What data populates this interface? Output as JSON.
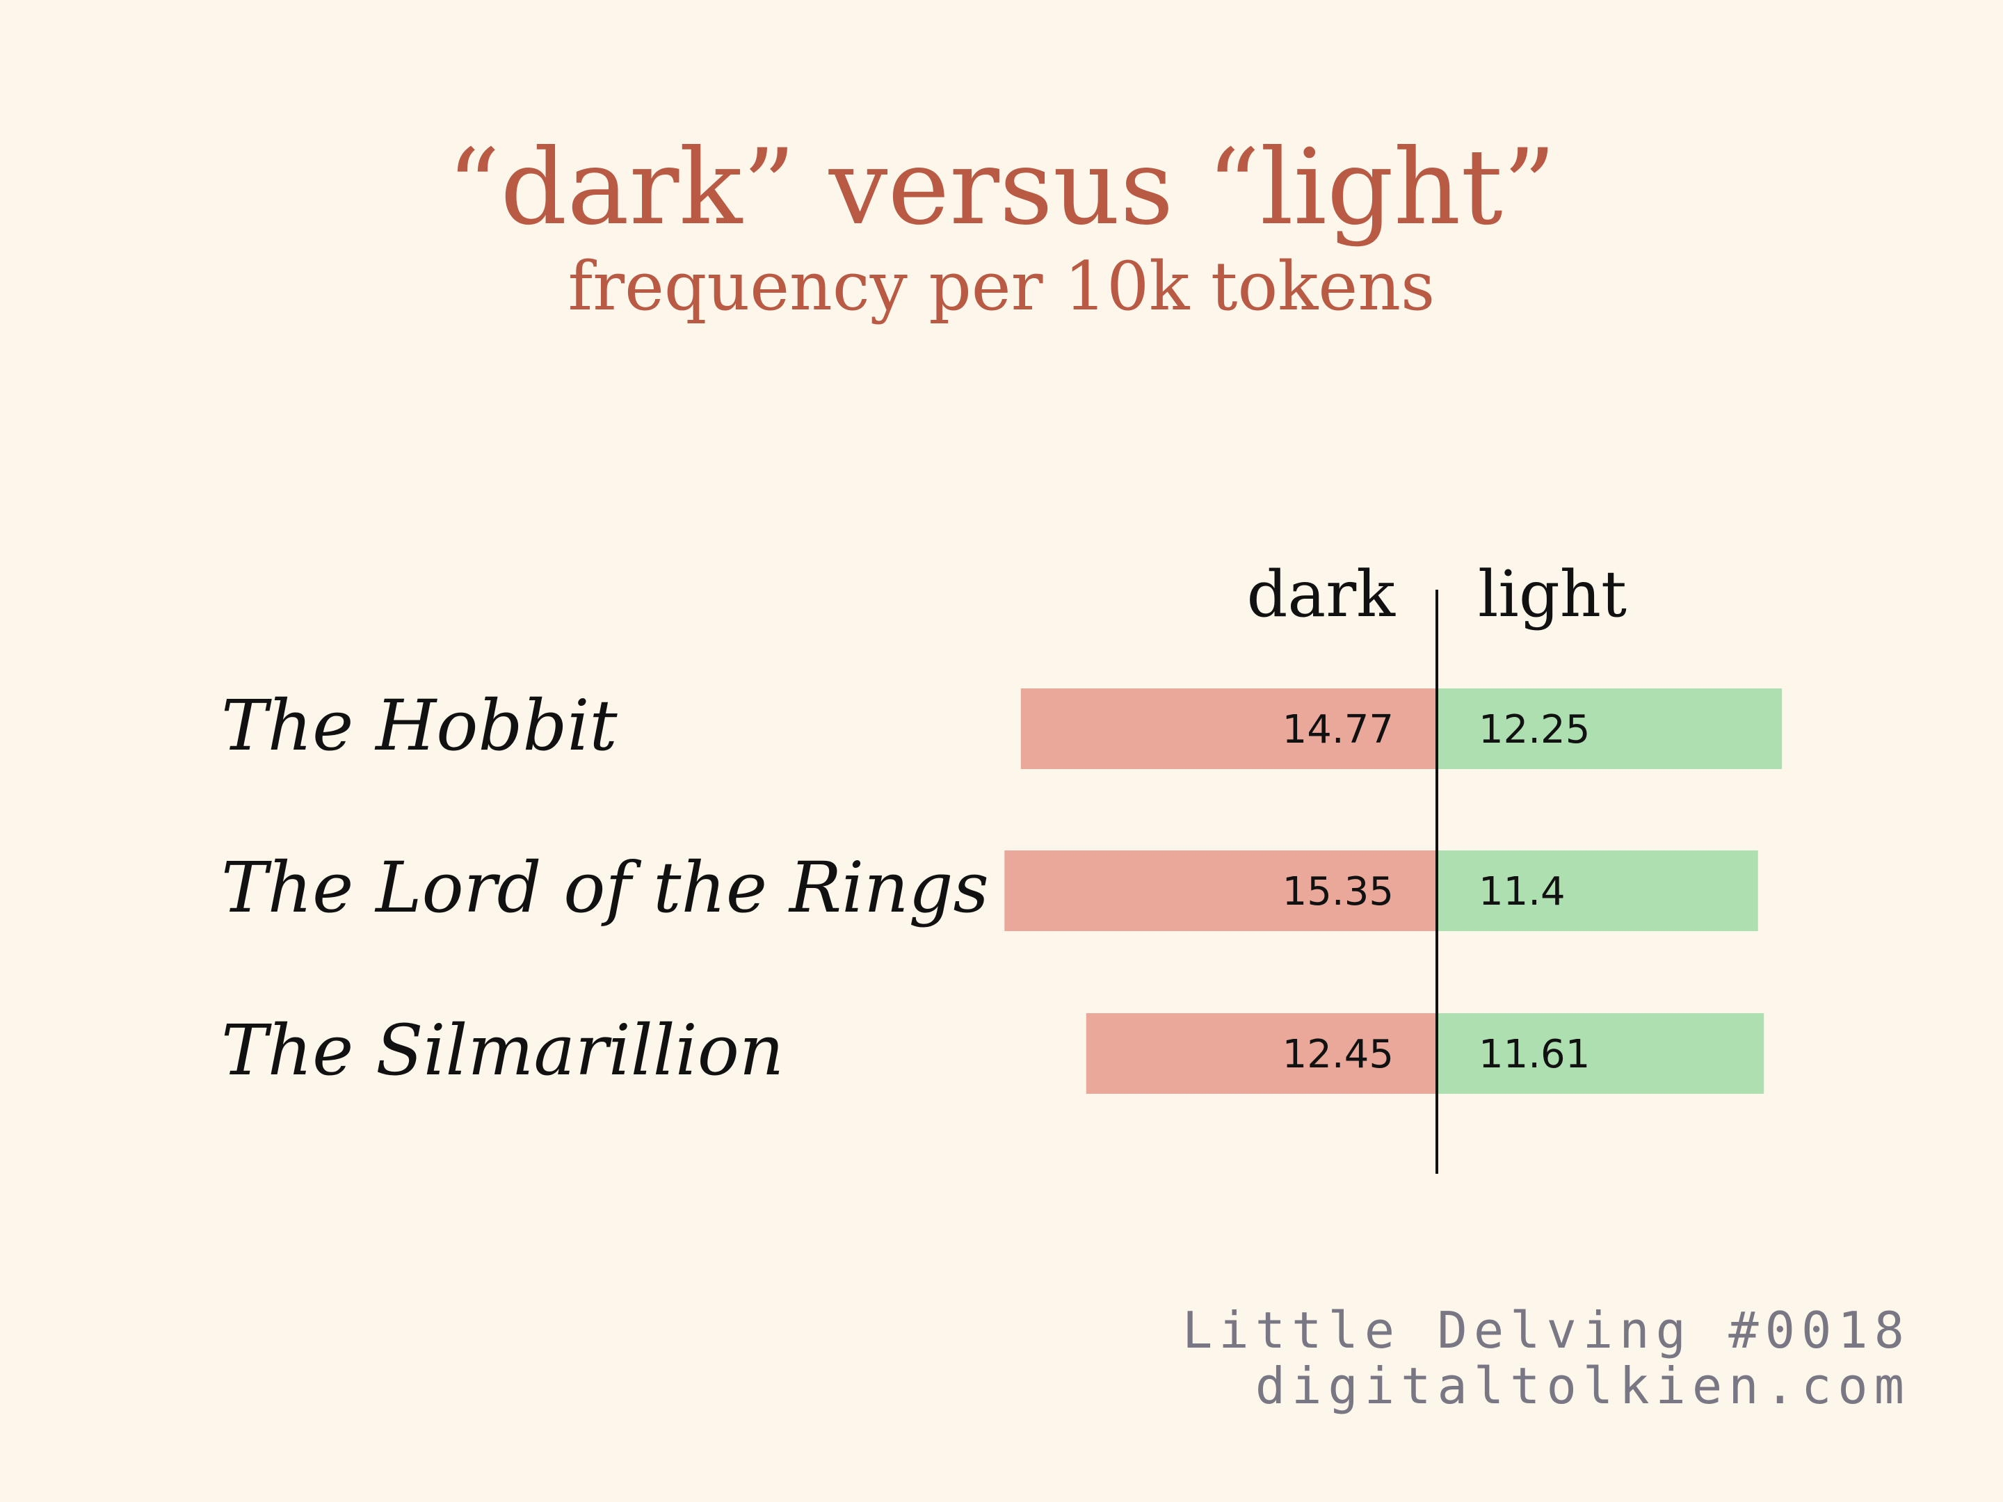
{
  "title": "“dark” versus “light”",
  "subtitle": "frequency per 10k tokens",
  "footer": {
    "line1": "Little Delving #0018",
    "line2": "digitaltolkien.com"
  },
  "chart_data": {
    "type": "bar",
    "orientation": "diverging-horizontal",
    "categories": [
      "The Hobbit",
      "The Lord of the Rings",
      "The Silmarillion"
    ],
    "series": [
      {
        "name": "dark",
        "values": [
          14.77,
          15.35,
          12.45
        ],
        "color": "#e9a899"
      },
      {
        "name": "light",
        "values": [
          12.25,
          11.4,
          11.61
        ],
        "color": "#aedfb0"
      }
    ],
    "axis_color": "#111111",
    "grid": false,
    "legend": "top-center"
  }
}
